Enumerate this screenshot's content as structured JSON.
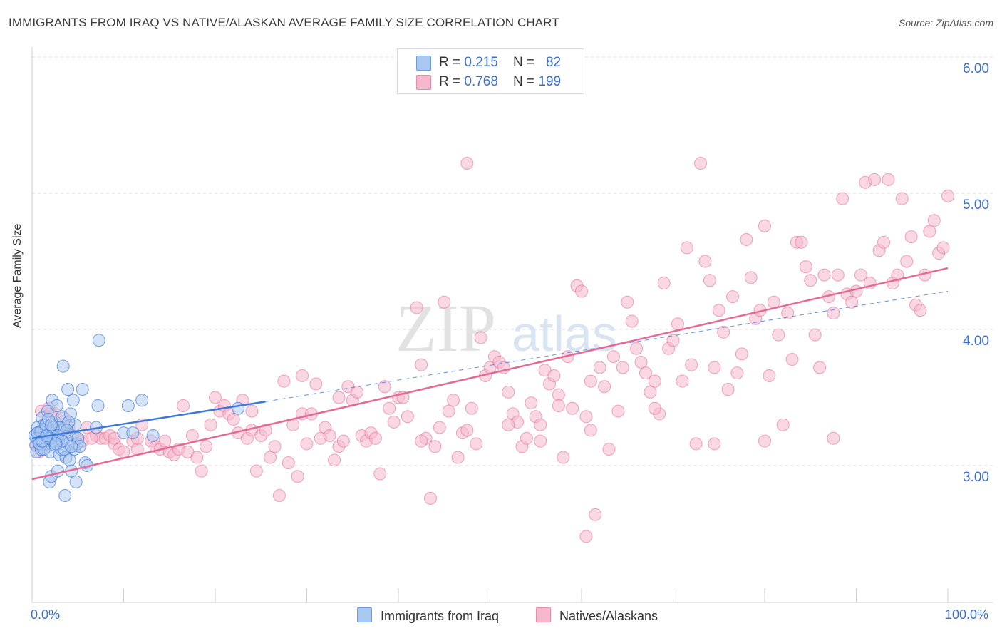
{
  "title": "IMMIGRANTS FROM IRAQ VS NATIVE/ALASKAN AVERAGE FAMILY SIZE CORRELATION CHART",
  "source": "Source: ZipAtlas.com",
  "watermark": {
    "zip": "ZIP",
    "atlas": "atlas"
  },
  "colors": {
    "blue": "#3a78d8",
    "blue_fill": "#a9c8f0",
    "pink": "#e56a93",
    "pink_fill": "#f6b8cc",
    "grid": "#dddddd",
    "axis_text": "#3a6fcc"
  },
  "legend": {
    "rows": [
      {
        "r_label": "R = ",
        "r_value": "0.215",
        "n_label": "N = ",
        "n_value": "82",
        "color": "#a9c8f0"
      },
      {
        "r_label": "R = ",
        "r_value": "0.768",
        "n_label": "N = ",
        "n_value": "199",
        "color": "#f6b8cc"
      }
    ]
  },
  "bottom_legend": {
    "series1": "Immigrants from Iraq",
    "series2": "Natives/Alaskans"
  },
  "chart_data": {
    "type": "scatter",
    "title": "IMMIGRANTS FROM IRAQ VS NATIVE/ALASKAN AVERAGE FAMILY SIZE CORRELATION CHART",
    "xlabel": "",
    "ylabel": "Average Family Size",
    "xlim": [
      0,
      100
    ],
    "ylim": [
      2.0,
      6.1
    ],
    "x_tick_labels": [
      "0.0%",
      "100.0%"
    ],
    "y_ticks": [
      3.0,
      4.0,
      5.0,
      6.0
    ],
    "y_tick_labels": [
      "3.00",
      "4.00",
      "5.00",
      "6.00"
    ],
    "grid": true,
    "series": [
      {
        "name": "Immigrants from Iraq",
        "R": 0.215,
        "N": 82,
        "trend": {
          "x0": 0,
          "y0": 3.2,
          "x1": 25.5,
          "y1": 3.47,
          "dashed_to_x": 100,
          "dashed_to_y": 4.28
        },
        "points": [
          [
            0.3,
            3.22
          ],
          [
            0.4,
            3.15
          ],
          [
            0.5,
            3.1
          ],
          [
            0.6,
            3.28
          ],
          [
            0.7,
            3.18
          ],
          [
            0.8,
            3.2
          ],
          [
            0.9,
            3.25
          ],
          [
            1.0,
            3.12
          ],
          [
            1.1,
            3.35
          ],
          [
            1.2,
            3.19
          ],
          [
            1.3,
            3.3
          ],
          [
            1.4,
            3.22
          ],
          [
            1.5,
            3.16
          ],
          [
            1.6,
            3.28
          ],
          [
            1.7,
            3.4
          ],
          [
            1.8,
            3.2
          ],
          [
            1.9,
            2.88
          ],
          [
            2.0,
            3.1
          ],
          [
            2.1,
            2.92
          ],
          [
            2.2,
            3.48
          ],
          [
            2.3,
            3.24
          ],
          [
            2.4,
            3.18
          ],
          [
            2.5,
            3.32
          ],
          [
            2.6,
            3.22
          ],
          [
            2.7,
            3.44
          ],
          [
            2.8,
            2.96
          ],
          [
            2.9,
            3.18
          ],
          [
            3.0,
            3.08
          ],
          [
            3.1,
            3.26
          ],
          [
            3.2,
            3.12
          ],
          [
            3.3,
            3.36
          ],
          [
            3.4,
            3.73
          ],
          [
            3.5,
            3.22
          ],
          [
            3.6,
            2.78
          ],
          [
            3.7,
            3.06
          ],
          [
            3.8,
            3.3
          ],
          [
            3.9,
            3.56
          ],
          [
            4.0,
            3.16
          ],
          [
            4.1,
            3.04
          ],
          [
            4.2,
            3.38
          ],
          [
            4.3,
            2.96
          ],
          [
            4.4,
            3.22
          ],
          [
            4.5,
            3.48
          ],
          [
            4.6,
            3.12
          ],
          [
            4.7,
            3.3
          ],
          [
            4.8,
            2.88
          ],
          [
            4.9,
            3.16
          ],
          [
            5.0,
            3.2
          ],
          [
            5.2,
            3.14
          ],
          [
            5.5,
            3.56
          ],
          [
            5.8,
            3.02
          ],
          [
            6.0,
            3.0
          ],
          [
            7.0,
            3.28
          ],
          [
            7.2,
            3.44
          ],
          [
            7.3,
            3.92
          ],
          [
            10.0,
            3.24
          ],
          [
            10.5,
            3.44
          ],
          [
            11.0,
            3.24
          ],
          [
            12.0,
            3.48
          ],
          [
            13.2,
            3.22
          ],
          [
            22.5,
            3.42
          ],
          [
            0.5,
            3.2
          ],
          [
            1.0,
            3.25
          ],
          [
            1.5,
            3.3
          ],
          [
            2.0,
            3.2
          ],
          [
            2.5,
            3.15
          ],
          [
            3.0,
            3.28
          ],
          [
            3.5,
            3.12
          ],
          [
            4.0,
            3.32
          ],
          [
            0.8,
            3.16
          ],
          [
            1.3,
            3.12
          ],
          [
            1.8,
            3.34
          ],
          [
            2.3,
            3.28
          ],
          [
            2.8,
            3.22
          ],
          [
            3.3,
            3.18
          ],
          [
            3.8,
            3.26
          ],
          [
            4.3,
            3.14
          ],
          [
            0.6,
            3.24
          ],
          [
            1.1,
            3.18
          ],
          [
            1.6,
            3.22
          ],
          [
            2.1,
            3.3
          ],
          [
            2.6,
            3.16
          ]
        ]
      },
      {
        "name": "Natives/Alaskans",
        "R": 0.768,
        "N": 199,
        "trend": {
          "x0": 0,
          "y0": 2.9,
          "x1": 100,
          "y1": 4.45
        },
        "points": [
          [
            0.5,
            3.15
          ],
          [
            0.8,
            3.1
          ],
          [
            1.0,
            3.4
          ],
          [
            1.2,
            3.25
          ],
          [
            1.5,
            3.3
          ],
          [
            1.8,
            3.42
          ],
          [
            2.0,
            3.2
          ],
          [
            2.5,
            3.38
          ],
          [
            3.0,
            3.22
          ],
          [
            3.5,
            3.35
          ],
          [
            4.0,
            3.28
          ],
          [
            5.0,
            3.2
          ],
          [
            5.5,
            3.18
          ],
          [
            6.0,
            3.28
          ],
          [
            7.0,
            3.22
          ],
          [
            7.5,
            3.2
          ],
          [
            8.0,
            3.2
          ],
          [
            8.5,
            3.22
          ],
          [
            9.0,
            3.16
          ],
          [
            9.5,
            3.12
          ],
          [
            10.0,
            3.1
          ],
          [
            11.0,
            3.18
          ],
          [
            11.5,
            3.12
          ],
          [
            12.0,
            3.3
          ],
          [
            13.0,
            3.18
          ],
          [
            13.5,
            3.14
          ],
          [
            14.0,
            3.12
          ],
          [
            14.5,
            3.18
          ],
          [
            15.0,
            3.1
          ],
          [
            15.5,
            3.08
          ],
          [
            16.0,
            3.12
          ],
          [
            16.5,
            3.44
          ],
          [
            17.0,
            3.1
          ],
          [
            17.5,
            3.22
          ],
          [
            18.0,
            3.06
          ],
          [
            18.5,
            2.96
          ],
          [
            19.0,
            3.14
          ],
          [
            19.5,
            3.3
          ],
          [
            20.0,
            3.5
          ],
          [
            20.5,
            3.4
          ],
          [
            21.0,
            3.44
          ],
          [
            21.5,
            3.38
          ],
          [
            22.0,
            3.34
          ],
          [
            22.5,
            3.24
          ],
          [
            23.0,
            3.48
          ],
          [
            23.5,
            3.2
          ],
          [
            24.0,
            3.26
          ],
          [
            24.5,
            2.96
          ],
          [
            25.0,
            3.22
          ],
          [
            25.5,
            3.26
          ],
          [
            26.0,
            3.06
          ],
          [
            26.5,
            3.14
          ],
          [
            27.0,
            2.78
          ],
          [
            27.5,
            3.62
          ],
          [
            28.0,
            3.02
          ],
          [
            28.5,
            3.3
          ],
          [
            29.0,
            2.92
          ],
          [
            29.5,
            3.38
          ],
          [
            30.0,
            3.16
          ],
          [
            30.5,
            3.38
          ],
          [
            31.0,
            3.6
          ],
          [
            31.5,
            3.2
          ],
          [
            32.0,
            3.28
          ],
          [
            32.5,
            3.22
          ],
          [
            33.0,
            3.04
          ],
          [
            33.5,
            3.14
          ],
          [
            34.0,
            3.18
          ],
          [
            34.5,
            3.58
          ],
          [
            35.0,
            3.48
          ],
          [
            35.5,
            3.54
          ],
          [
            36.0,
            3.22
          ],
          [
            36.5,
            3.18
          ],
          [
            37.0,
            3.24
          ],
          [
            37.5,
            3.2
          ],
          [
            38.0,
            2.94
          ],
          [
            38.5,
            3.58
          ],
          [
            39.0,
            3.42
          ],
          [
            39.5,
            3.32
          ],
          [
            40.0,
            3.5
          ],
          [
            40.5,
            3.5
          ],
          [
            41.0,
            3.36
          ],
          [
            42.0,
            4.16
          ],
          [
            42.5,
            3.74
          ],
          [
            43.0,
            3.2
          ],
          [
            43.5,
            2.76
          ],
          [
            44.0,
            3.14
          ],
          [
            44.5,
            3.28
          ],
          [
            45.0,
            4.2
          ],
          [
            45.5,
            3.4
          ],
          [
            46.0,
            3.48
          ],
          [
            46.5,
            3.06
          ],
          [
            47.0,
            3.24
          ],
          [
            47.5,
            3.26
          ],
          [
            48.0,
            3.42
          ],
          [
            48.5,
            3.16
          ],
          [
            49.0,
            3.94
          ],
          [
            49.5,
            3.66
          ],
          [
            50.0,
            3.72
          ],
          [
            50.5,
            3.8
          ],
          [
            51.0,
            3.76
          ],
          [
            51.5,
            3.72
          ],
          [
            52.0,
            3.54
          ],
          [
            52.5,
            3.38
          ],
          [
            53.0,
            3.32
          ],
          [
            53.5,
            3.14
          ],
          [
            54.0,
            3.2
          ],
          [
            54.5,
            3.46
          ],
          [
            55.0,
            3.36
          ],
          [
            55.5,
            3.3
          ],
          [
            56.0,
            3.7
          ],
          [
            56.5,
            3.6
          ],
          [
            57.0,
            3.66
          ],
          [
            57.5,
            3.52
          ],
          [
            58.0,
            3.06
          ],
          [
            58.5,
            3.8
          ],
          [
            59.0,
            3.42
          ],
          [
            59.5,
            4.32
          ],
          [
            60.0,
            4.28
          ],
          [
            60.5,
            3.36
          ],
          [
            61.0,
            3.26
          ],
          [
            61.5,
            2.64
          ],
          [
            62.0,
            3.72
          ],
          [
            62.5,
            3.58
          ],
          [
            63.0,
            3.12
          ],
          [
            63.5,
            3.8
          ],
          [
            64.0,
            3.4
          ],
          [
            64.5,
            3.72
          ],
          [
            65.0,
            4.2
          ],
          [
            65.5,
            4.06
          ],
          [
            66.0,
            3.86
          ],
          [
            66.5,
            3.76
          ],
          [
            67.0,
            3.68
          ],
          [
            67.5,
            3.54
          ],
          [
            68.0,
            3.62
          ],
          [
            68.5,
            3.38
          ],
          [
            69.0,
            4.34
          ],
          [
            69.5,
            3.86
          ],
          [
            70.0,
            3.92
          ],
          [
            70.5,
            4.04
          ],
          [
            71.0,
            3.62
          ],
          [
            71.5,
            4.6
          ],
          [
            72.0,
            3.74
          ],
          [
            72.5,
            3.16
          ],
          [
            73.0,
            5.22
          ],
          [
            73.5,
            4.5
          ],
          [
            74.0,
            4.36
          ],
          [
            74.5,
            3.72
          ],
          [
            75.0,
            4.14
          ],
          [
            75.5,
            3.98
          ],
          [
            76.0,
            3.56
          ],
          [
            76.5,
            4.24
          ],
          [
            77.0,
            3.68
          ],
          [
            77.5,
            3.82
          ],
          [
            78.0,
            4.66
          ],
          [
            78.5,
            4.38
          ],
          [
            79.0,
            4.08
          ],
          [
            79.5,
            4.14
          ],
          [
            80.0,
            4.76
          ],
          [
            80.5,
            3.66
          ],
          [
            81.0,
            4.2
          ],
          [
            81.5,
            3.96
          ],
          [
            82.0,
            3.3
          ],
          [
            82.5,
            4.12
          ],
          [
            83.0,
            3.78
          ],
          [
            83.5,
            4.64
          ],
          [
            84.0,
            4.64
          ],
          [
            84.5,
            4.46
          ],
          [
            85.0,
            4.36
          ],
          [
            85.5,
            3.96
          ],
          [
            86.0,
            3.72
          ],
          [
            86.5,
            4.4
          ],
          [
            87.0,
            4.24
          ],
          [
            87.5,
            4.12
          ],
          [
            88.0,
            4.4
          ],
          [
            88.5,
            4.96
          ],
          [
            89.0,
            4.26
          ],
          [
            89.5,
            4.2
          ],
          [
            90.0,
            4.28
          ],
          [
            90.5,
            4.4
          ],
          [
            91.0,
            5.08
          ],
          [
            91.5,
            4.34
          ],
          [
            92.0,
            5.1
          ],
          [
            92.5,
            4.58
          ],
          [
            93.0,
            4.64
          ],
          [
            93.5,
            5.1
          ],
          [
            94.0,
            4.34
          ],
          [
            94.5,
            4.4
          ],
          [
            95.0,
            4.96
          ],
          [
            95.5,
            4.5
          ],
          [
            96.0,
            4.68
          ],
          [
            96.5,
            4.18
          ],
          [
            97.0,
            4.14
          ],
          [
            97.5,
            4.4
          ],
          [
            98.0,
            4.72
          ],
          [
            98.5,
            4.8
          ],
          [
            99.0,
            4.56
          ],
          [
            99.5,
            4.6
          ],
          [
            100.0,
            4.98
          ],
          [
            60.5,
            2.48
          ],
          [
            24.0,
            3.4
          ],
          [
            42.5,
            3.18
          ],
          [
            9.0,
            3.2
          ],
          [
            2.0,
            3.38
          ],
          [
            4.5,
            3.16
          ],
          [
            11.5,
            3.2
          ],
          [
            6.5,
            3.2
          ],
          [
            47.5,
            5.22
          ],
          [
            57.5,
            3.44
          ],
          [
            61.0,
            3.62
          ],
          [
            52.0,
            3.3
          ],
          [
            33.5,
            3.5
          ],
          [
            29.5,
            3.66
          ],
          [
            87.5,
            3.2
          ],
          [
            80.0,
            3.18
          ],
          [
            68.0,
            3.42
          ],
          [
            74.5,
            3.16
          ],
          [
            55.5,
            3.18
          ]
        ]
      }
    ]
  }
}
